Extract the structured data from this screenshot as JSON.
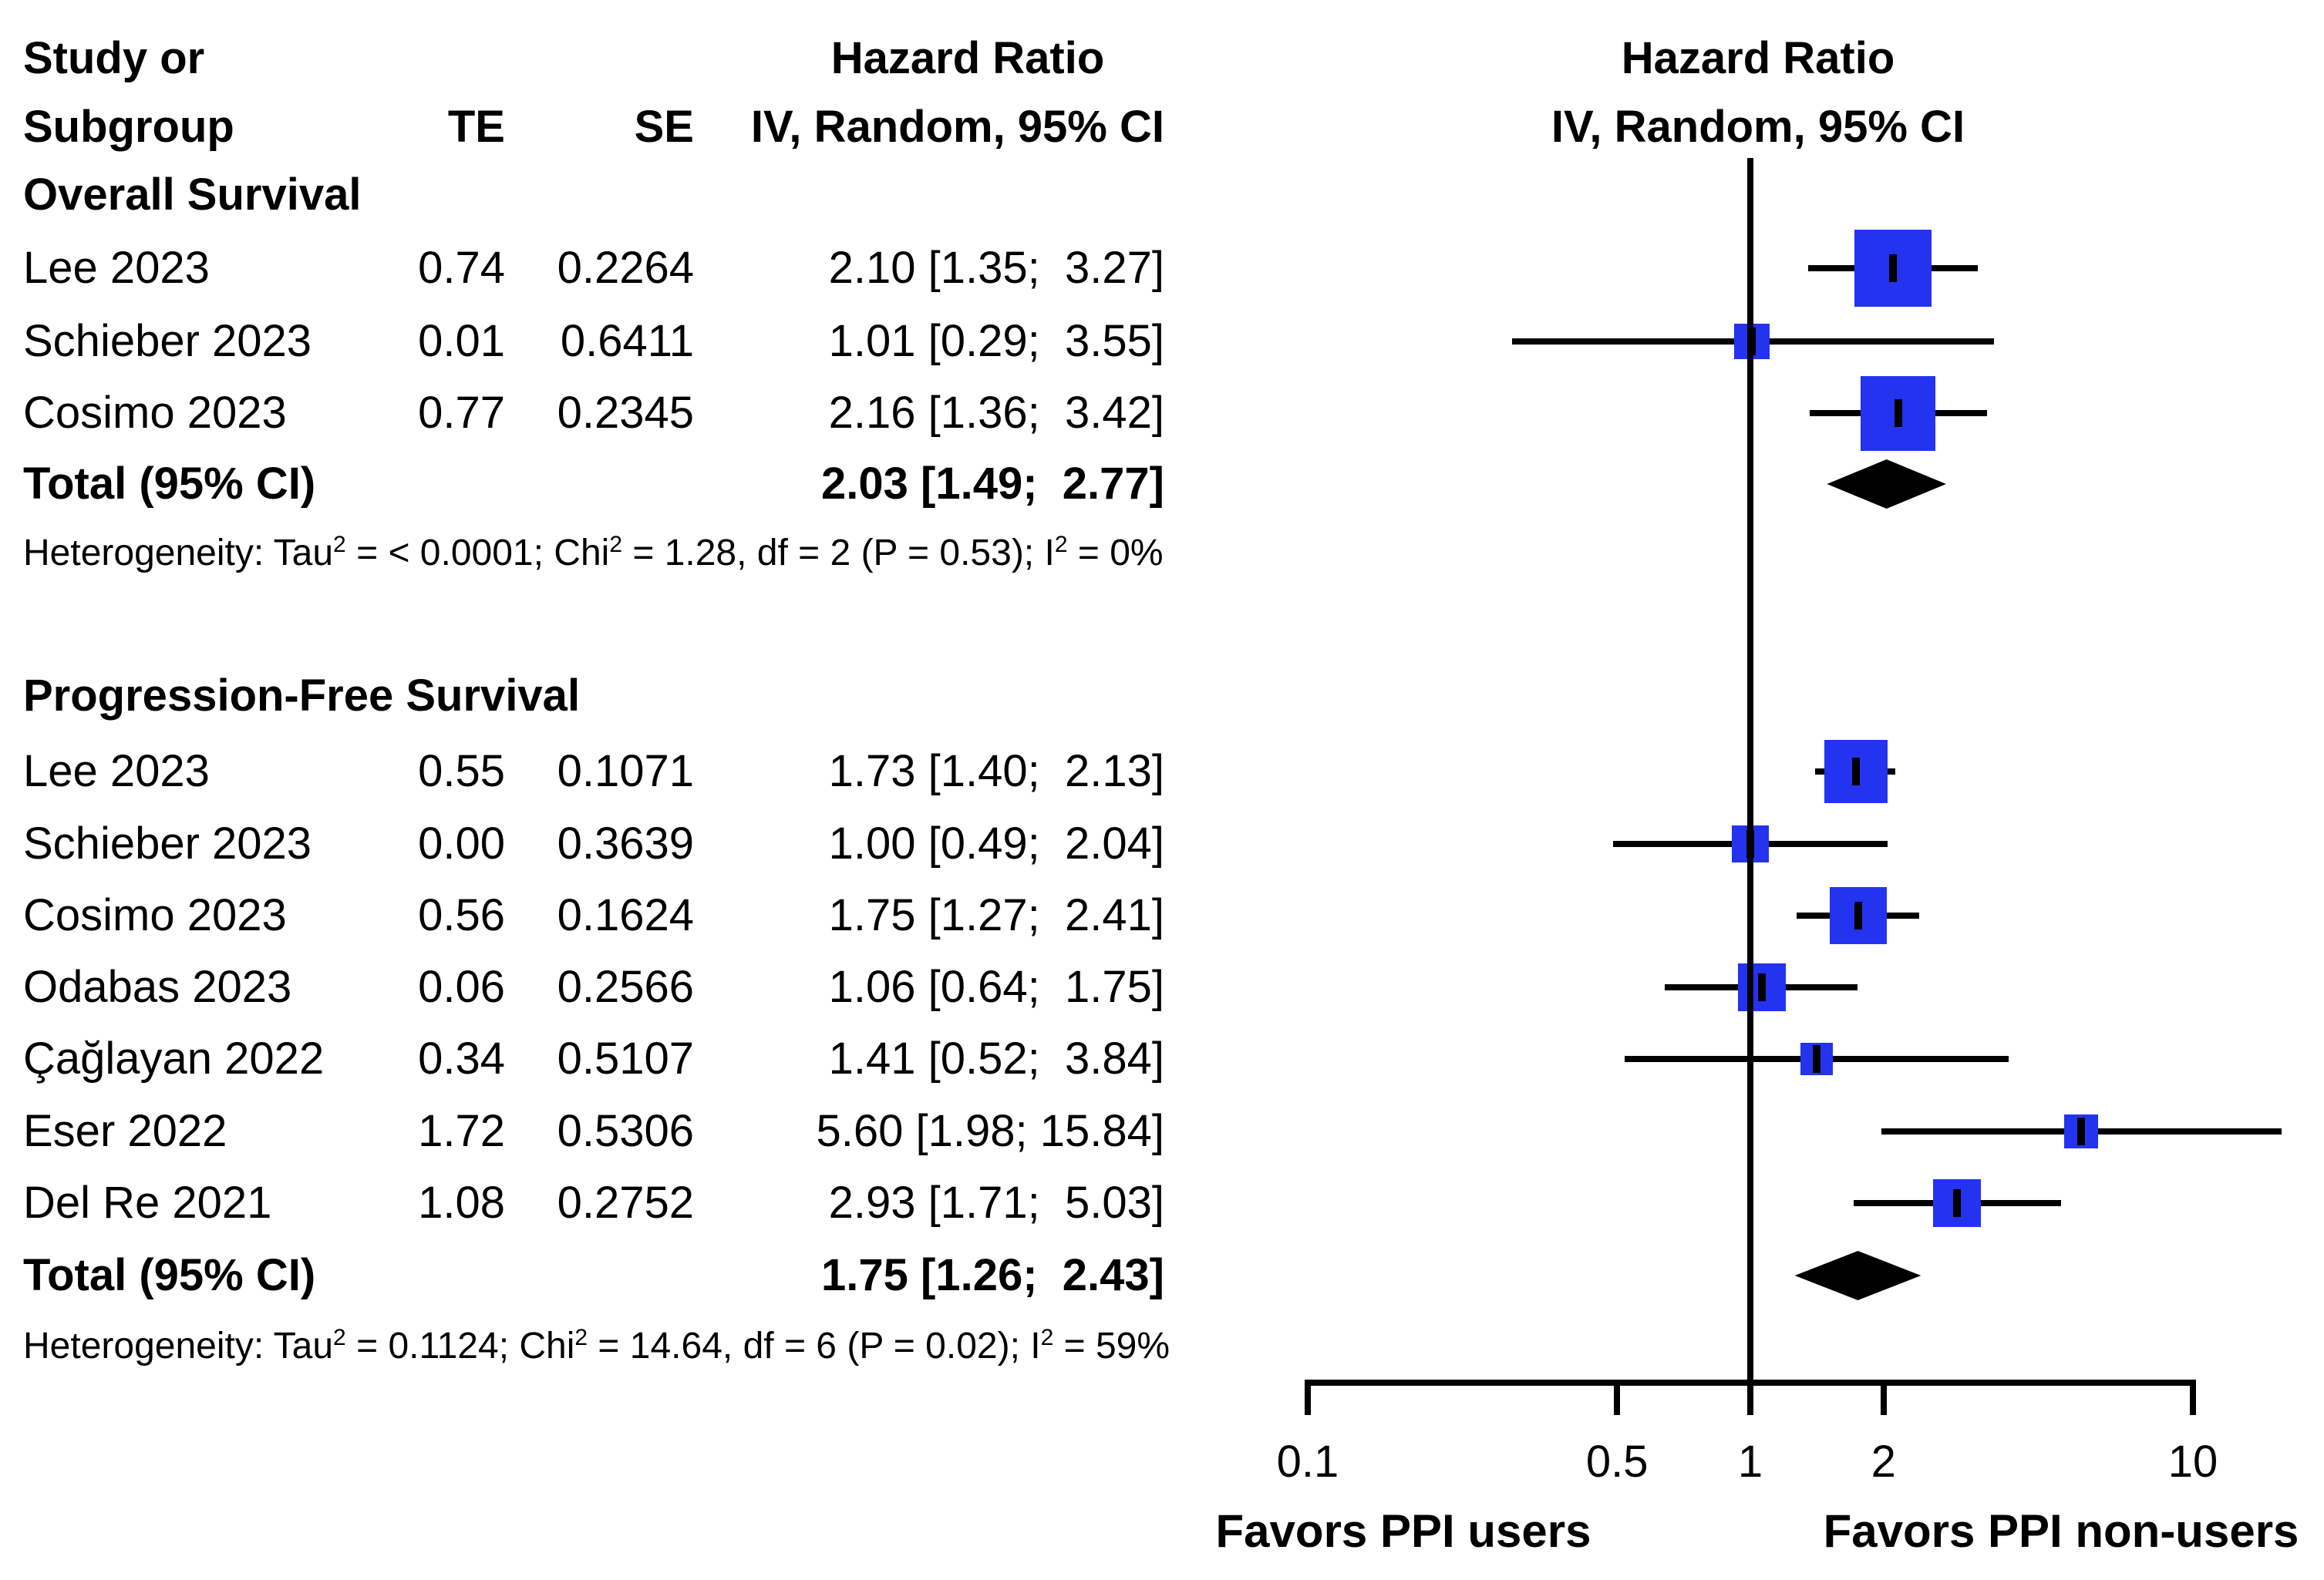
{
  "page": {
    "background": "#ffffff"
  },
  "header": {
    "study_line1": "Study or",
    "study_line2": "Subgroup",
    "te": "TE",
    "se": "SE",
    "hr_title_left": "Hazard Ratio",
    "hr_subtitle_left": "IV, Random, 95% CI",
    "hr_title_right": "Hazard Ratio",
    "hr_subtitle_right": "IV, Random, 95% CI"
  },
  "sup": "2",
  "chart_data": {
    "type": "forest",
    "x_scale": "log10",
    "x_axis": {
      "ticks": [
        0.1,
        0.5,
        1,
        2,
        10
      ],
      "tick_labels": [
        "0.1",
        "0.5",
        "1",
        "2",
        "10"
      ],
      "range": [
        0.1,
        10
      ],
      "reference_line": 1
    },
    "footer_left": "Favors PPI users",
    "footer_right": "Favors PPI non-users",
    "marker_color": "#2433F0",
    "diamond_color": "#000000",
    "sections": [
      {
        "title": "Overall Survival",
        "studies": [
          {
            "name": "Lee 2023",
            "te": "0.74",
            "se": "0.2264",
            "ci_text": "2.10 [1.35;  3.27]",
            "hr": 2.1,
            "lo": 1.35,
            "hi": 3.27,
            "square": 100
          },
          {
            "name": "Schieber 2023",
            "te": "0.01",
            "se": "0.6411",
            "ci_text": "1.01 [0.29;  3.55]",
            "hr": 1.01,
            "lo": 0.29,
            "hi": 3.55,
            "square": 46
          },
          {
            "name": "Cosimo 2023",
            "te": "0.77",
            "se": "0.2345",
            "ci_text": "2.16 [1.36;  3.42]",
            "hr": 2.16,
            "lo": 1.36,
            "hi": 3.42,
            "square": 97
          }
        ],
        "total": {
          "label": "Total (95% CI)",
          "ci_text": "2.03 [1.49;  2.77]",
          "hr": 2.03,
          "lo": 1.49,
          "hi": 2.77
        },
        "heterogeneity": {
          "t1": "Heterogeneity: Tau",
          "t2": " = < 0.0001; Chi",
          "t3": " = 1.28, df = 2 (P = 0.53); I",
          "t4": " = 0%"
        }
      },
      {
        "title": "Progression-Free Survival",
        "studies": [
          {
            "name": "Lee 2023",
            "te": "0.55",
            "se": "0.1071",
            "ci_text": "1.73 [1.40;  2.13]",
            "hr": 1.73,
            "lo": 1.4,
            "hi": 2.13,
            "square": 82
          },
          {
            "name": "Schieber 2023",
            "te": "0.00",
            "se": "0.3639",
            "ci_text": "1.00 [0.49;  2.04]",
            "hr": 1.0,
            "lo": 0.49,
            "hi": 2.04,
            "square": 48
          },
          {
            "name": "Cosimo 2023",
            "te": "0.56",
            "se": "0.1624",
            "ci_text": "1.75 [1.27;  2.41]",
            "hr": 1.75,
            "lo": 1.27,
            "hi": 2.41,
            "square": 74
          },
          {
            "name": "Odabas 2023",
            "te": "0.06",
            "se": "0.2566",
            "ci_text": "1.06 [0.64;  1.75]",
            "hr": 1.06,
            "lo": 0.64,
            "hi": 1.75,
            "square": 62
          },
          {
            "name": "Çağlayan 2022",
            "te": "0.34",
            "se": "0.5107",
            "ci_text": "1.41 [0.52;  3.84]",
            "hr": 1.41,
            "lo": 0.52,
            "hi": 3.84,
            "square": 42
          },
          {
            "name": "Eser 2022",
            "te": "1.72",
            "se": "0.5306",
            "ci_text": "5.60 [1.98; 15.84]",
            "hr": 5.6,
            "lo": 1.98,
            "hi": 15.84,
            "square": 44
          },
          {
            "name": "Del Re 2021",
            "te": "1.08",
            "se": "0.2752",
            "ci_text": "2.93 [1.71;  5.03]",
            "hr": 2.93,
            "lo": 1.71,
            "hi": 5.03,
            "square": 62
          }
        ],
        "total": {
          "label": "Total (95% CI)",
          "ci_text": "1.75 [1.26;  2.43]",
          "hr": 1.75,
          "lo": 1.26,
          "hi": 2.43
        },
        "heterogeneity": {
          "t1": "Heterogeneity: Tau",
          "t2": " = 0.1124; Chi",
          "t3": " = 14.64, df = 6 (P = 0.02); I",
          "t4": " = 59%"
        }
      }
    ]
  }
}
